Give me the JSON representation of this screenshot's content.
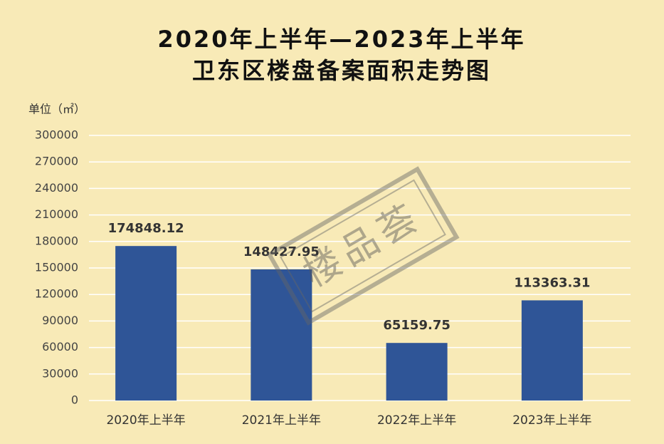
{
  "chart_data": {
    "type": "bar",
    "title_lines": [
      "2020年上半年—2023年上半年",
      "卫东区楼盘备案面积走势图"
    ],
    "y_unit_label": "单位（㎡）",
    "watermark": "楼品荟",
    "categories": [
      "2020年上半年",
      "2021年上半年",
      "2022年上半年",
      "2023年上半年"
    ],
    "values": [
      174848.12,
      148427.95,
      65159.75,
      113363.31
    ],
    "color": "#2f5597",
    "ylim": [
      0,
      300000
    ],
    "yticks": [
      0,
      30000,
      60000,
      90000,
      120000,
      150000,
      180000,
      210000,
      240000,
      270000,
      300000
    ],
    "grid": true
  }
}
